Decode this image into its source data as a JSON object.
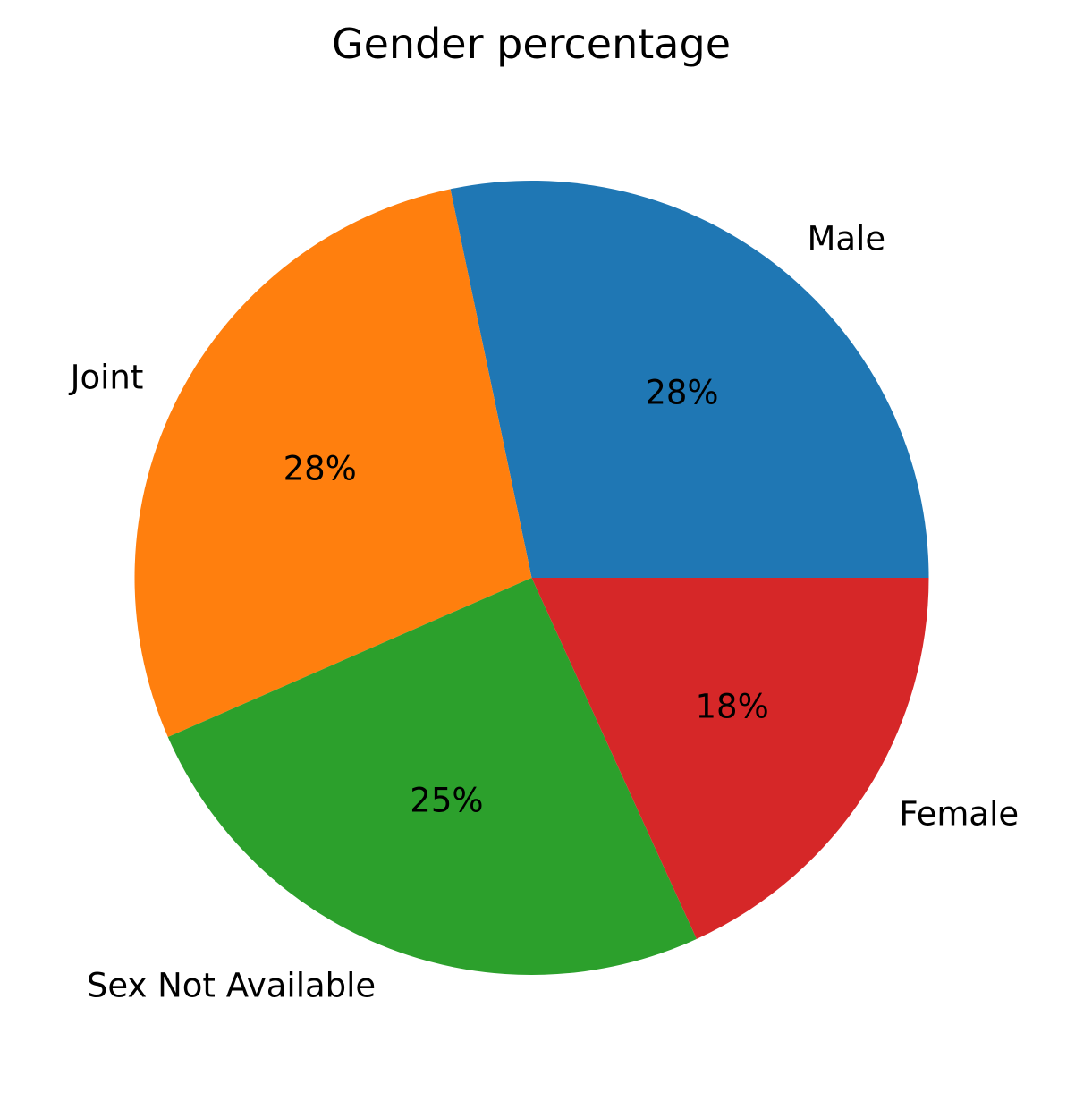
{
  "chart_data": {
    "type": "pie",
    "title": "Gender percentage",
    "start_angle_deg": 0,
    "direction": "counterclockwise",
    "slices": [
      {
        "label": "Male",
        "value": 28,
        "pct_label": "28%",
        "color": "#1f77b4"
      },
      {
        "label": "Joint",
        "value": 28,
        "pct_label": "28%",
        "color": "#ff7f0e"
      },
      {
        "label": "Sex Not Available",
        "value": 25,
        "pct_label": "25%",
        "color": "#2ca02c"
      },
      {
        "label": "Female",
        "value": 18,
        "pct_label": "18%",
        "color": "#d62728"
      }
    ]
  }
}
